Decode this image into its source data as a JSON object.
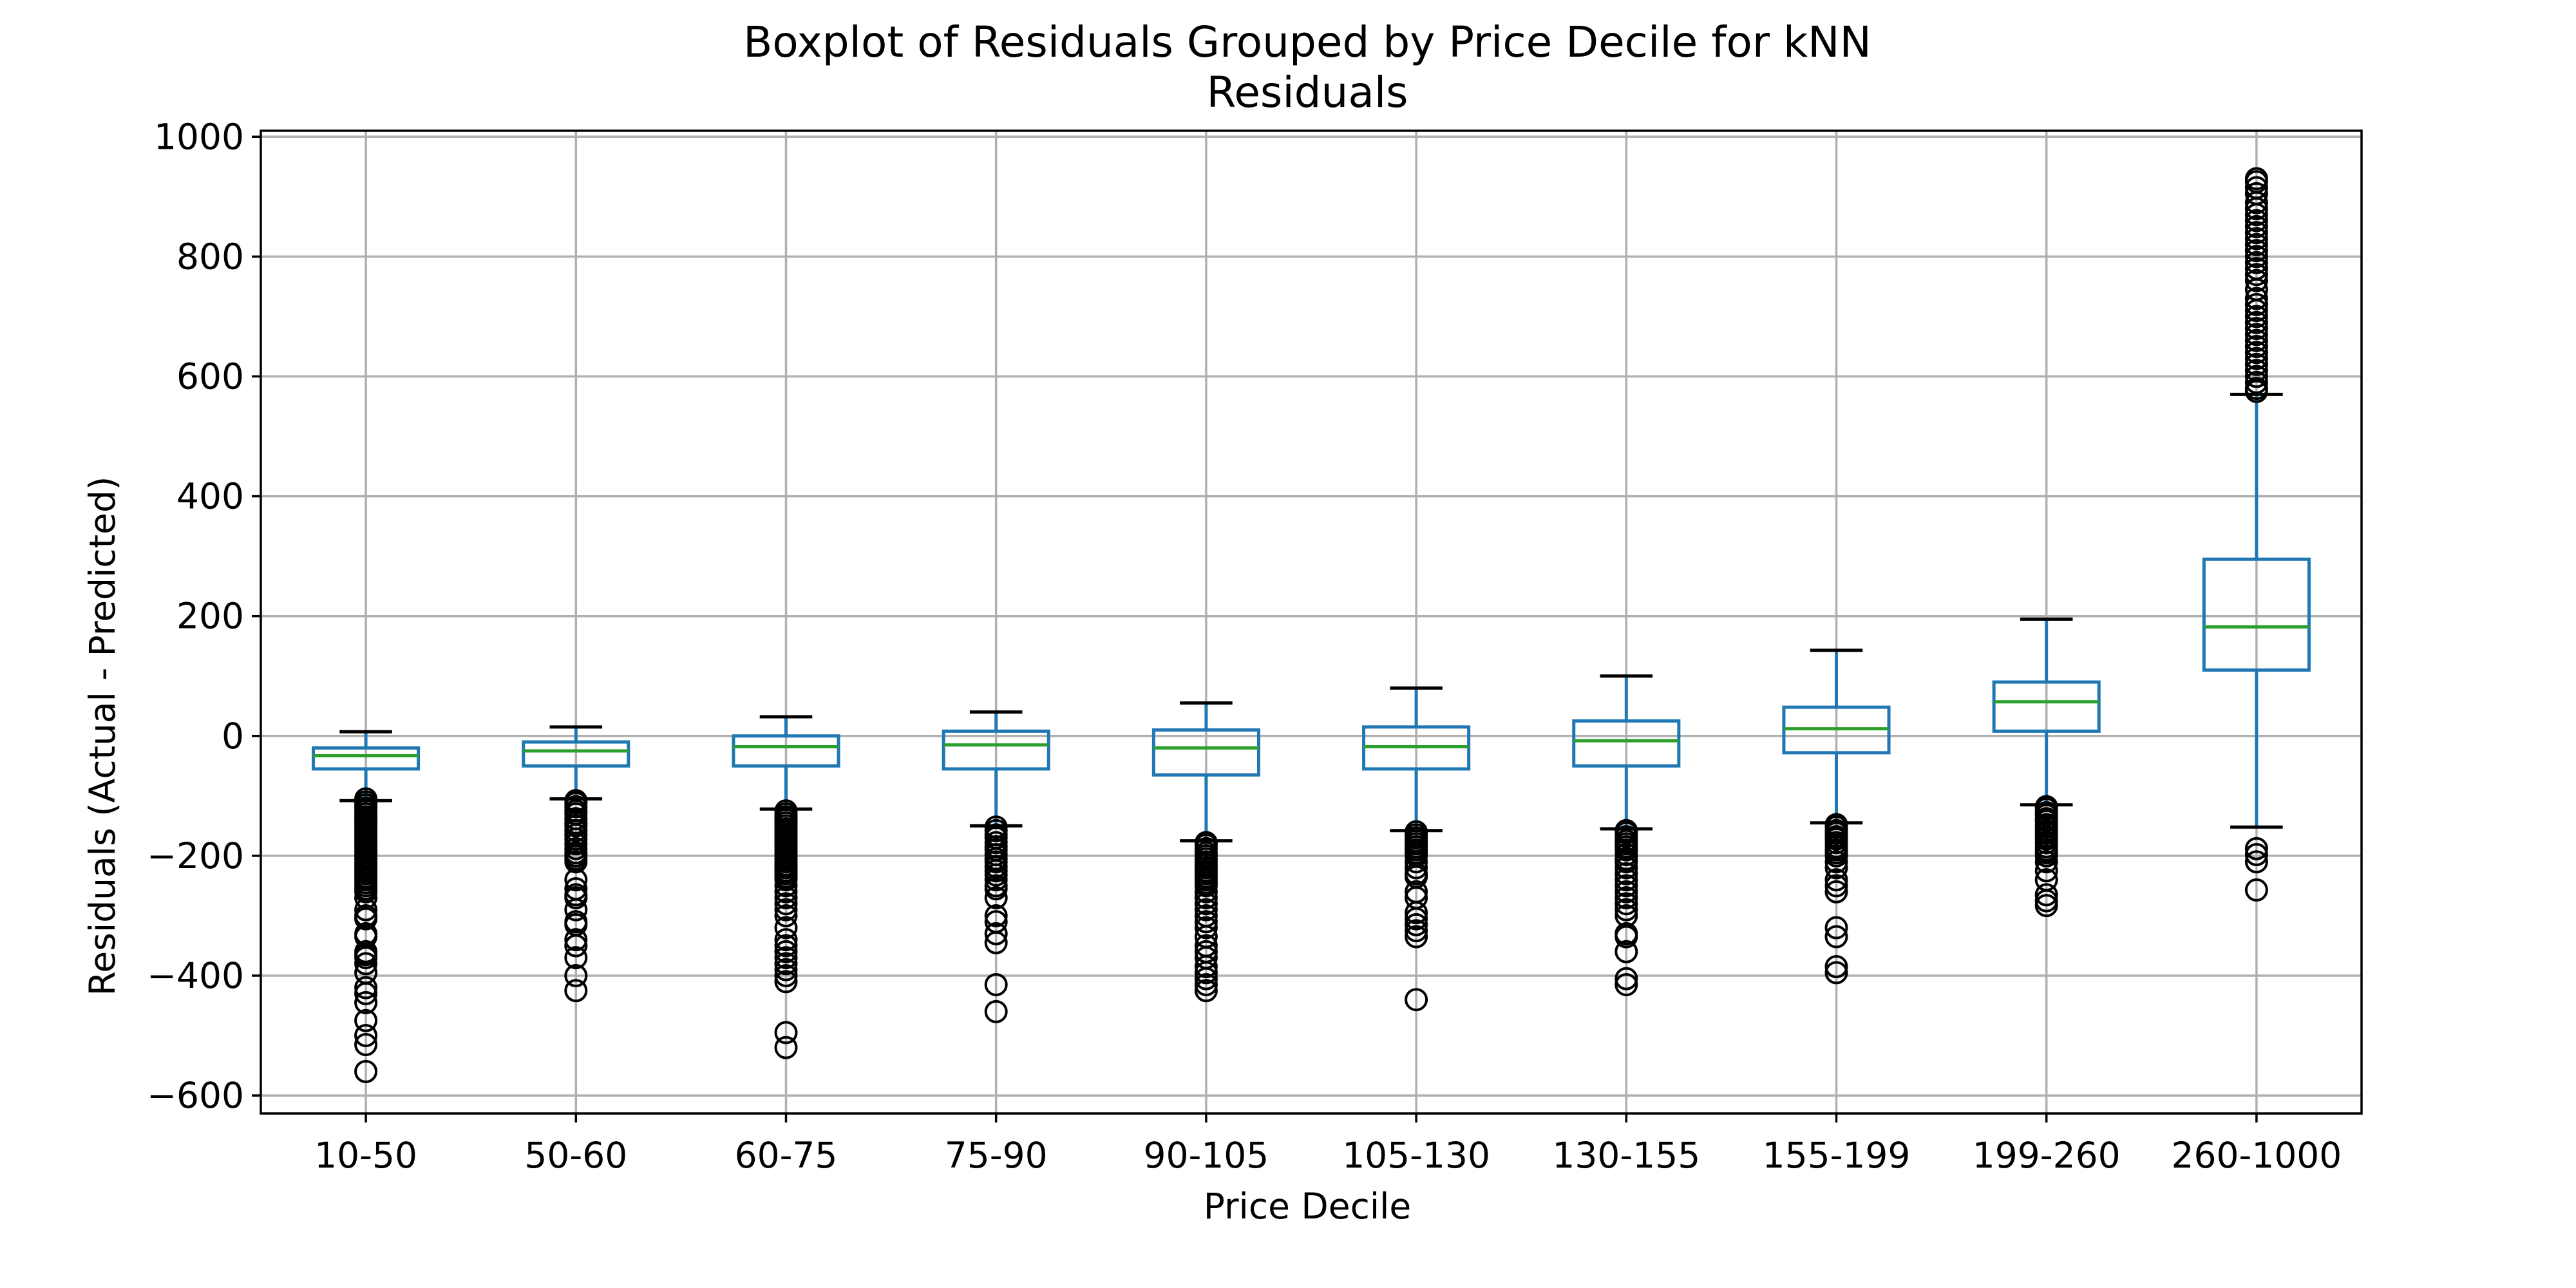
{
  "chart_data": {
    "type": "boxplot",
    "title": "Boxplot of Residuals Grouped by Price Decile for kNN",
    "subtitle": "Residuals",
    "xlabel": "Price Decile",
    "ylabel": "Residuals (Actual - Predicted)",
    "ylim": [
      -630,
      1010
    ],
    "yticks": [
      -600,
      -400,
      -200,
      0,
      200,
      400,
      600,
      800,
      1000
    ],
    "ytick_labels": [
      "−600",
      "−400",
      "−200",
      "0",
      "200",
      "400",
      "600",
      "800",
      "1000"
    ],
    "grid": true,
    "colors": {
      "box": "#1f77b4",
      "median": "#2ca02c",
      "whisker_cap": "#000000",
      "flier": "#000000",
      "grid": "#b0b0b0"
    },
    "categories": [
      "10-50",
      "50-60",
      "60-75",
      "75-90",
      "90-105",
      "105-130",
      "130-155",
      "155-199",
      "199-260",
      "260-1000"
    ],
    "boxes": [
      {
        "whislo": -108,
        "q1": -55,
        "med": -33,
        "q3": -20,
        "whishi": 7,
        "fliers": [
          -105,
          -110,
          -115,
          -120,
          -125,
          -130,
          -135,
          -140,
          -145,
          -150,
          -155,
          -160,
          -165,
          -170,
          -175,
          -180,
          -185,
          -190,
          -195,
          -200,
          -205,
          -210,
          -215,
          -220,
          -225,
          -230,
          -235,
          -240,
          -245,
          -250,
          -255,
          -260,
          -270,
          -290,
          -300,
          -305,
          -330,
          -335,
          -360,
          -365,
          -370,
          -380,
          -395,
          -420,
          -430,
          -445,
          -475,
          -500,
          -515,
          -560
        ]
      },
      {
        "whislo": -105,
        "q1": -50,
        "med": -25,
        "q3": -10,
        "whishi": 15,
        "fliers": [
          -108,
          -112,
          -118,
          -125,
          -130,
          -138,
          -145,
          -150,
          -158,
          -165,
          -172,
          -180,
          -188,
          -195,
          -200,
          -205,
          -210,
          -240,
          -255,
          -265,
          -270,
          -290,
          -310,
          -315,
          -340,
          -350,
          -370,
          -400,
          -425
        ]
      },
      {
        "whislo": -122,
        "q1": -50,
        "med": -18,
        "q3": 0,
        "whishi": 32,
        "fliers": [
          -125,
          -130,
          -135,
          -140,
          -145,
          -150,
          -155,
          -160,
          -165,
          -170,
          -175,
          -180,
          -185,
          -190,
          -195,
          -200,
          -205,
          -210,
          -215,
          -220,
          -225,
          -230,
          -235,
          -240,
          -250,
          -260,
          -270,
          -280,
          -290,
          -300,
          -320,
          -340,
          -350,
          -360,
          -370,
          -380,
          -390,
          -400,
          -410,
          -495,
          -520
        ]
      },
      {
        "whislo": -150,
        "q1": -55,
        "med": -15,
        "q3": 8,
        "whishi": 40,
        "fliers": [
          -152,
          -158,
          -165,
          -170,
          -178,
          -185,
          -190,
          -198,
          -205,
          -210,
          -218,
          -225,
          -232,
          -240,
          -250,
          -255,
          -270,
          -300,
          -310,
          -330,
          -345,
          -415,
          -460
        ]
      },
      {
        "whislo": -175,
        "q1": -65,
        "med": -20,
        "q3": 10,
        "whishi": 55,
        "fliers": [
          -178,
          -182,
          -188,
          -195,
          -200,
          -205,
          -210,
          -215,
          -220,
          -225,
          -230,
          -235,
          -240,
          -245,
          -250,
          -260,
          -270,
          -280,
          -290,
          -300,
          -310,
          -320,
          -335,
          -350,
          -360,
          -370,
          -385,
          -395,
          -405,
          -415,
          -425
        ]
      },
      {
        "whislo": -158,
        "q1": -55,
        "med": -18,
        "q3": 15,
        "whishi": 80,
        "fliers": [
          -160,
          -165,
          -170,
          -175,
          -180,
          -185,
          -190,
          -195,
          -200,
          -210,
          -220,
          -230,
          -235,
          -260,
          -270,
          -295,
          -305,
          -315,
          -325,
          -335,
          -440
        ]
      },
      {
        "whislo": -155,
        "q1": -50,
        "med": -8,
        "q3": 25,
        "whishi": 100,
        "fliers": [
          -158,
          -162,
          -168,
          -175,
          -180,
          -185,
          -190,
          -198,
          -205,
          -210,
          -220,
          -230,
          -240,
          -250,
          -260,
          -270,
          -280,
          -290,
          -300,
          -330,
          -335,
          -360,
          -405,
          -415
        ]
      },
      {
        "whislo": -145,
        "q1": -28,
        "med": 12,
        "q3": 48,
        "whishi": 143,
        "fliers": [
          -148,
          -152,
          -158,
          -162,
          -168,
          -172,
          -178,
          -185,
          -190,
          -195,
          -200,
          -210,
          -220,
          -240,
          -250,
          -260,
          -320,
          -335,
          -385,
          -395
        ]
      },
      {
        "whislo": -115,
        "q1": 8,
        "med": 57,
        "q3": 90,
        "whishi": 195,
        "fliers": [
          -118,
          -122,
          -128,
          -132,
          -138,
          -142,
          -148,
          -152,
          -158,
          -162,
          -168,
          -172,
          -178,
          -185,
          -190,
          -195,
          -200,
          -210,
          -225,
          -240,
          -265,
          -275,
          -283
        ]
      },
      {
        "whislo": -152,
        "q1": 110,
        "med": 182,
        "q3": 295,
        "whishi": 570,
        "fliers": [
          575,
          580,
          590,
          600,
          610,
          620,
          630,
          640,
          650,
          660,
          670,
          680,
          690,
          700,
          710,
          720,
          730,
          745,
          760,
          770,
          780,
          790,
          800,
          810,
          820,
          830,
          840,
          850,
          860,
          870,
          880,
          890,
          905,
          915,
          925,
          930,
          -188,
          -198,
          -210,
          -257
        ]
      }
    ]
  }
}
